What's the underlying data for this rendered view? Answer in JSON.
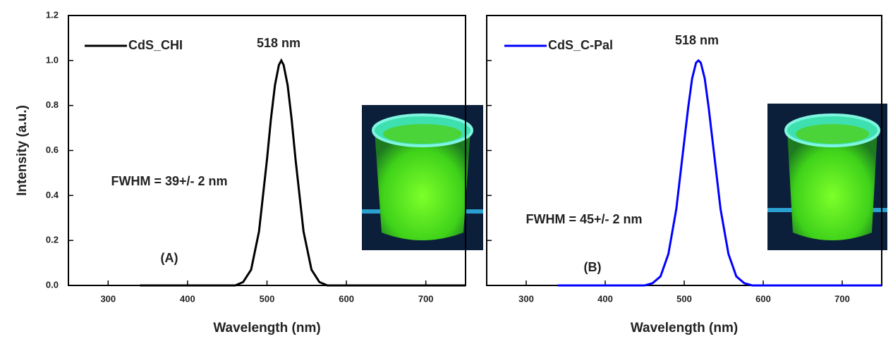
{
  "chart_data": [
    {
      "type": "line",
      "xlabel": "Wavelength (nm)",
      "ylabel": "Intensity (a.u.)",
      "x": [
        340,
        450,
        460,
        470,
        480,
        490,
        500,
        505,
        510,
        515,
        518,
        521,
        526,
        531,
        536,
        546,
        556,
        566,
        576,
        586,
        750
      ],
      "series": [
        {
          "name": "CdS_CHI",
          "color": "#000000",
          "values": [
            0,
            0,
            0,
            0.015,
            0.07,
            0.24,
            0.56,
            0.74,
            0.89,
            0.98,
            1,
            0.98,
            0.89,
            0.74,
            0.56,
            0.24,
            0.07,
            0.015,
            0,
            0,
            0
          ]
        }
      ],
      "xlim": [
        250,
        750
      ],
      "ylim": [
        0,
        1.2
      ],
      "xticks": [
        300,
        400,
        500,
        600,
        700
      ],
      "yticks": [
        {
          "value": 0,
          "label": "0.0"
        },
        0.2,
        0.4,
        0.6,
        0.8,
        {
          "value": 1,
          "label": "1.0"
        },
        1.2
      ],
      "peak_label": "518 nm",
      "fwhm_label": "FWHM = 39+/- 2 nm",
      "panel_label": "(A)"
    },
    {
      "type": "line",
      "xlabel": "Wavelength (nm)",
      "x": [
        340,
        450,
        460,
        470,
        480,
        490,
        500,
        505,
        510,
        515,
        518,
        521,
        526,
        531,
        536,
        546,
        556,
        566,
        576,
        586,
        750
      ],
      "series": [
        {
          "name": "CdS_C-Pal",
          "color": "#0000ff",
          "values": [
            0,
            0,
            0.01,
            0.04,
            0.14,
            0.34,
            0.64,
            0.79,
            0.92,
            0.99,
            1,
            0.99,
            0.92,
            0.79,
            0.64,
            0.34,
            0.14,
            0.04,
            0.01,
            0,
            0
          ]
        }
      ],
      "xlim": [
        250,
        750
      ],
      "ylim": [
        0,
        1.2
      ],
      "xticks": [
        300,
        400,
        500,
        600,
        700
      ],
      "yticks": [
        0,
        0.2,
        0.4,
        0.6,
        0.8,
        1,
        1.2
      ],
      "peak_label": "518 nm",
      "fwhm_label": "FWHM = 45+/- 2 nm",
      "panel_label": "(B)"
    }
  ]
}
